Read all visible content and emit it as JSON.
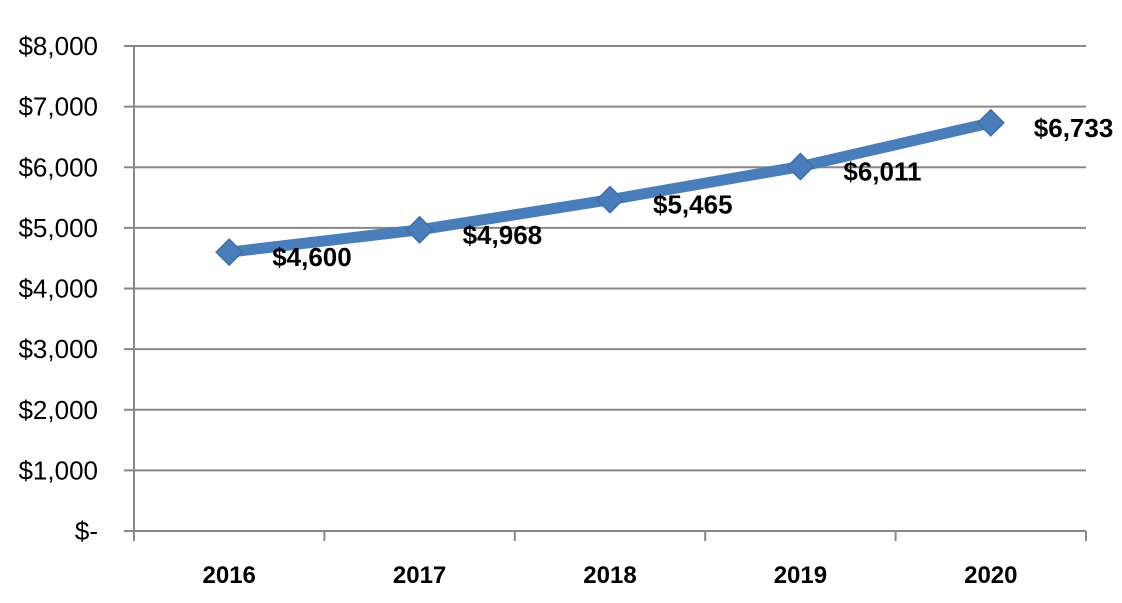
{
  "chart_data": {
    "type": "line",
    "title": "",
    "xlabel": "",
    "ylabel": "",
    "categories": [
      "2016",
      "2017",
      "2018",
      "2019",
      "2020"
    ],
    "series": [
      {
        "values": [
          4600,
          4968,
          5465,
          6011,
          6733
        ]
      }
    ],
    "data_labels": [
      "$4,600",
      "$4,968",
      "$5,465",
      "$6,011",
      "$6,733"
    ],
    "ylim": [
      0,
      8000
    ],
    "y_ticks": [
      0,
      1000,
      2000,
      3000,
      4000,
      5000,
      6000,
      7000,
      8000
    ],
    "y_tick_labels": [
      "$-",
      "$1,000",
      "$2,000",
      "$3,000",
      "$4,000",
      "$5,000",
      "$6,000",
      "$7,000",
      "$8,000"
    ],
    "grid": true,
    "legend": "none",
    "marker": "diamond",
    "line_color": "#4A7EBB",
    "grid_color": "#888888"
  }
}
